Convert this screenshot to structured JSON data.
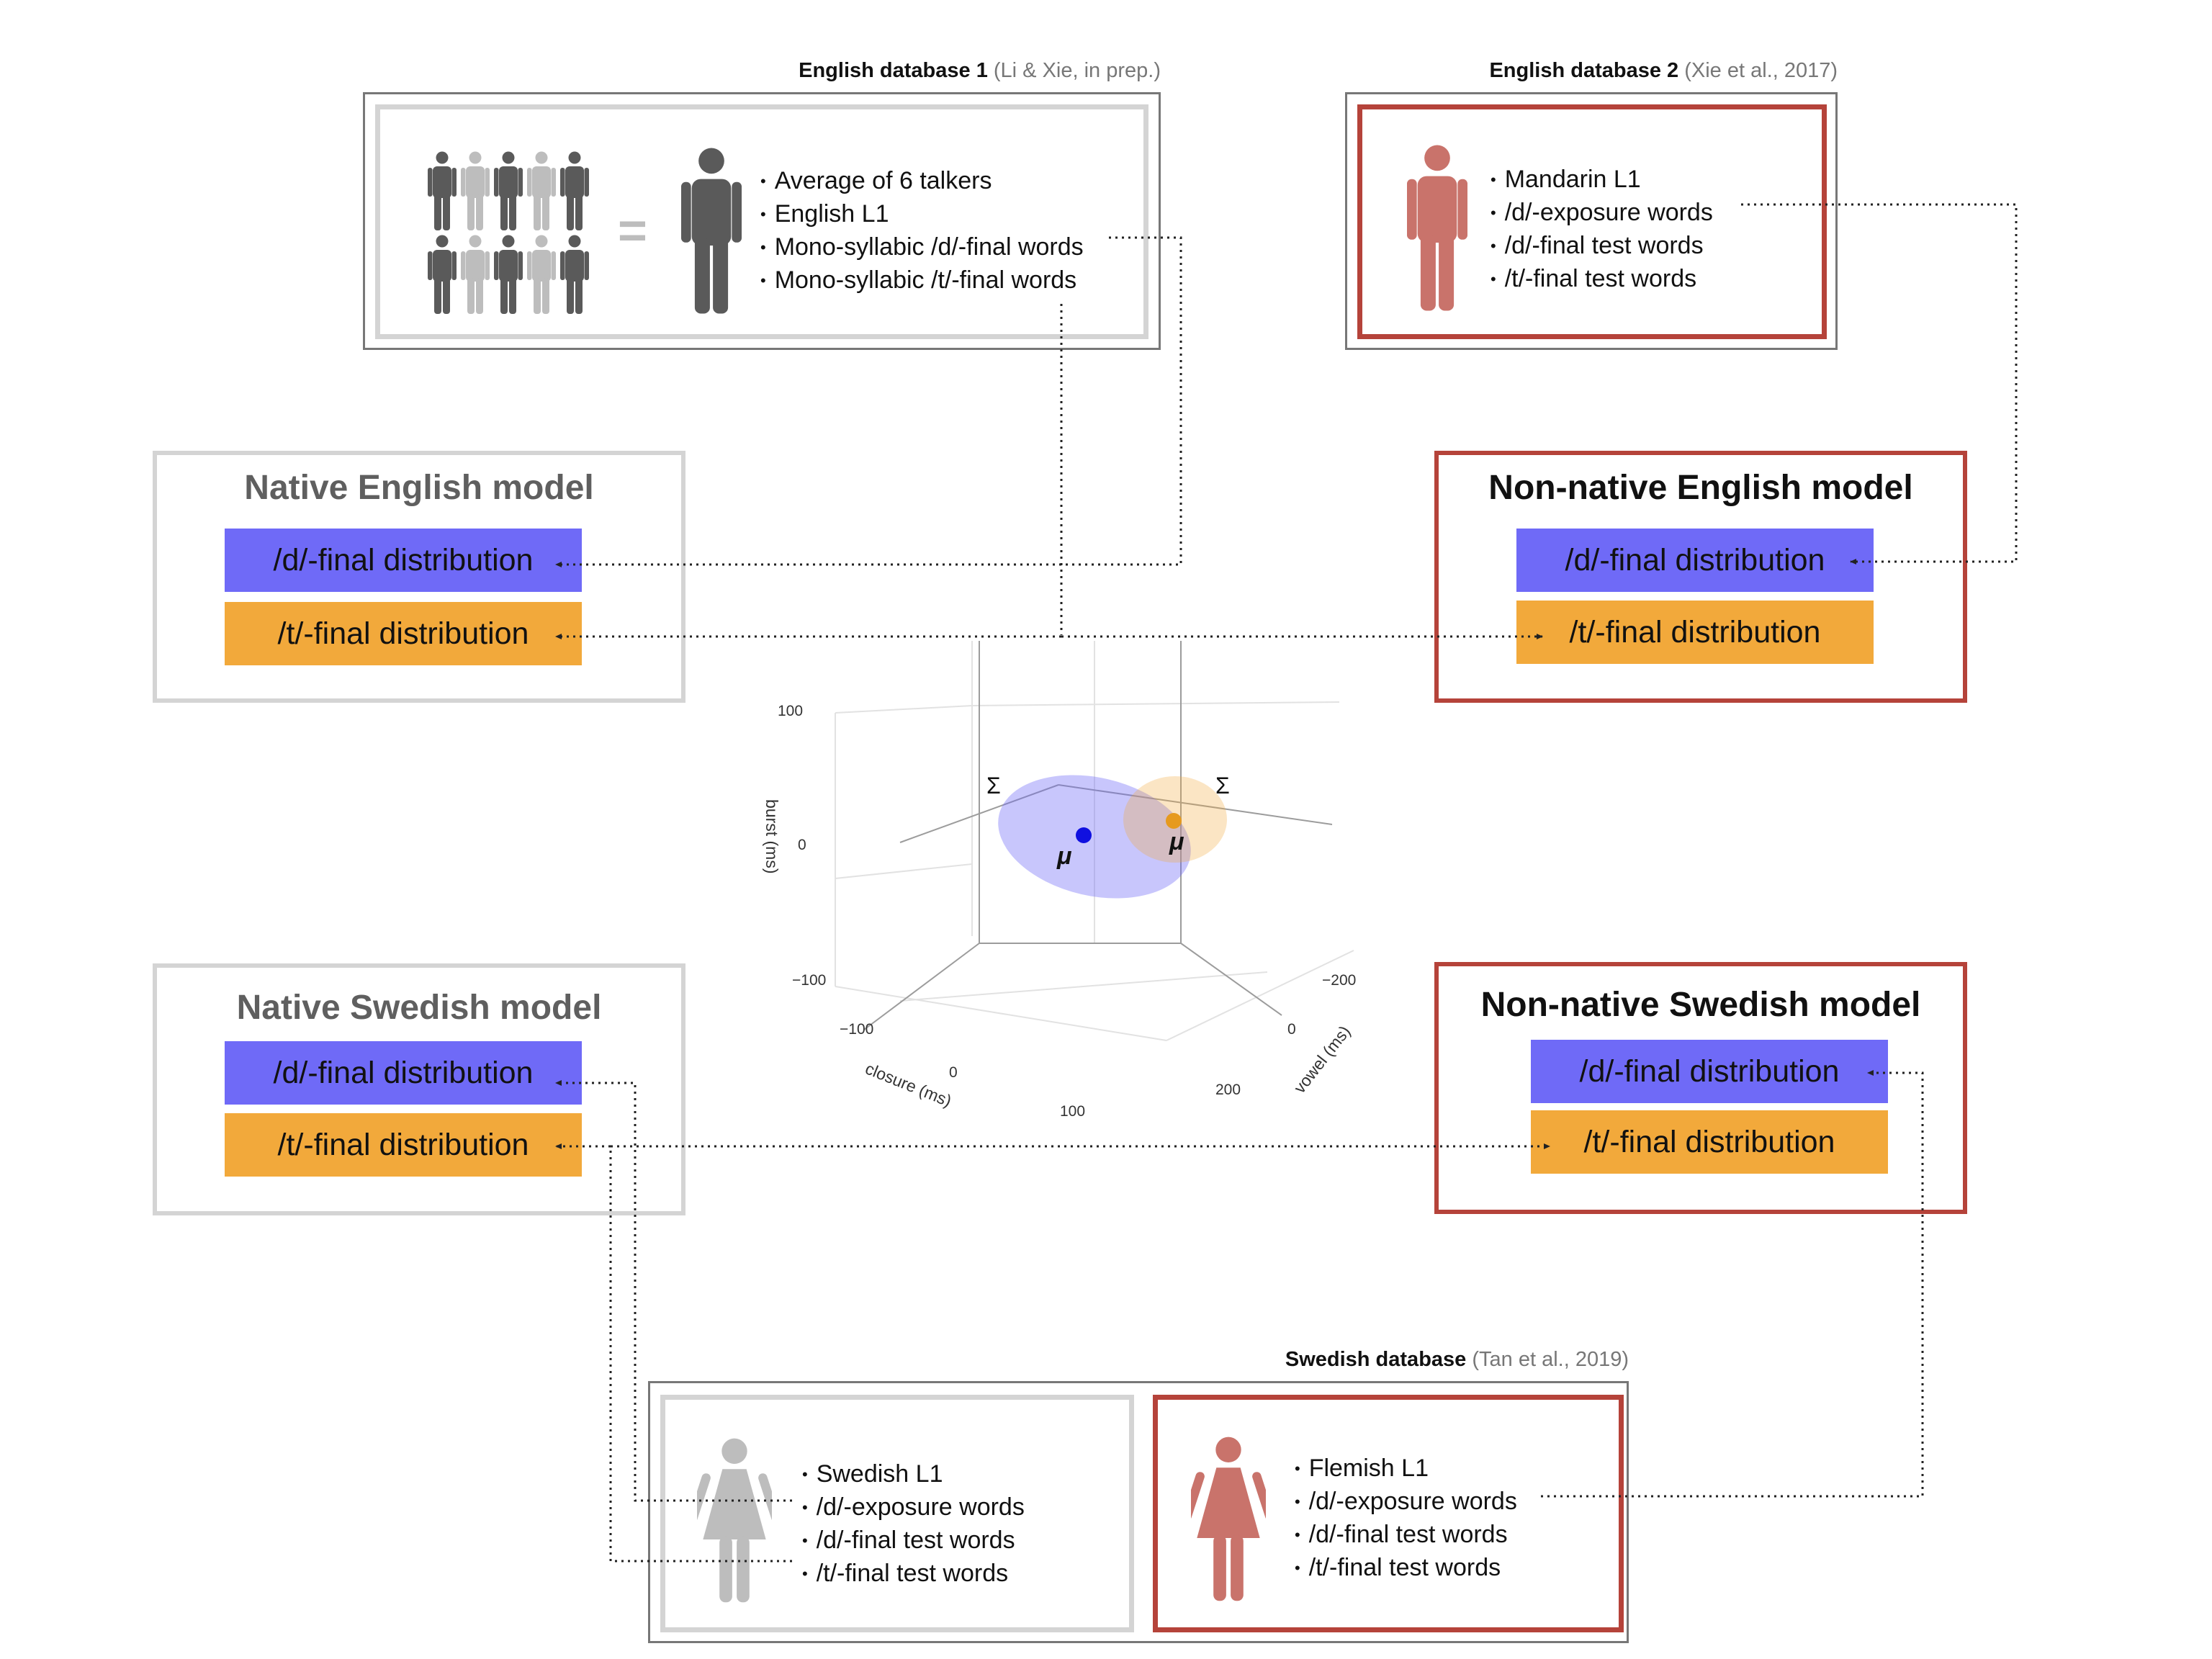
{
  "db_english1": {
    "title": "English database 1",
    "cite": "(Li & Xie, in prep.)",
    "bullets": [
      "Average of 6 talkers",
      "English L1",
      "Mono-syllabic /d/-final words",
      "Mono-syllabic /t/-final words"
    ],
    "equals": "="
  },
  "db_english2": {
    "title": "English database 2",
    "cite": "(Xie et al., 2017)",
    "bullets": [
      "Mandarin L1",
      "/d/-exposure words",
      "/d/-final test words",
      "/t/-final test words"
    ]
  },
  "db_swedish": {
    "title": "Swedish database",
    "cite": "(Tan et al., 2019)",
    "swedish_bullets": [
      "Swedish L1",
      "/d/-exposure words",
      "/d/-final test words",
      "/t/-final test words"
    ],
    "flemish_bullets": [
      "Flemish L1",
      "/d/-exposure words",
      "/d/-final test words",
      "/t/-final test words"
    ]
  },
  "models": {
    "native_english": {
      "title": "Native English model",
      "d": "/d/-final distribution",
      "t": "/t/-final distribution"
    },
    "nonnative_english": {
      "title": "Non-native English model",
      "d": "/d/-final distribution",
      "t": "/t/-final distribution"
    },
    "native_swedish": {
      "title": "Native Swedish model",
      "d": "/d/-final distribution",
      "t": "/t/-final distribution"
    },
    "nonnative_swedish": {
      "title": "Non-native Swedish model",
      "d": "/d/-final distribution",
      "t": "/t/-final distribution"
    }
  },
  "plot3d": {
    "burst_label": "burst (ms)",
    "closure_label": "closure (ms)",
    "vowel_label": "vowel (ms)",
    "burst_ticks": [
      "100",
      "0",
      "−100"
    ],
    "closure_ticks": [
      "−100",
      "0",
      "100"
    ],
    "vowel_ticks": [
      "−200",
      "0",
      "200"
    ],
    "sigma": "Σ",
    "mu": "μ"
  },
  "colors": {
    "d_dist": "#6f6af7",
    "t_dist": "#f2a93b",
    "nonnative_red": "#b5433a",
    "figure_dark": "#5a5a5a",
    "figure_light": "#bdbdbd",
    "figure_red": "#c9736b",
    "d_mean": "#1010e0",
    "t_mean": "#e69a1f"
  }
}
